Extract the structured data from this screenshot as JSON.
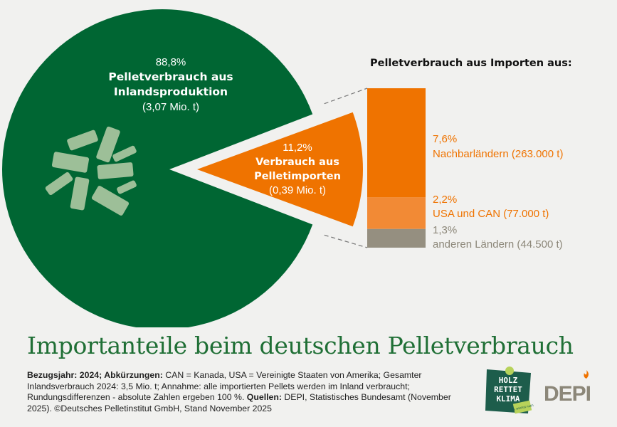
{
  "chart_data": {
    "type": "pie",
    "title": "Importanteile beim deutschen Pelletverbrauch",
    "slices": [
      {
        "percent_label": "88,8%",
        "value": 88.8,
        "label_lines": [
          "Pelletverbrauch aus",
          "Inlandsproduktion"
        ],
        "amount": "(3,07 Mio. t)",
        "color": "#006633"
      },
      {
        "percent_label": "11,2%",
        "value": 11.2,
        "label_lines": [
          "Verbrauch aus",
          "Pelletimporten"
        ],
        "amount": "(0,39 Mio. t)",
        "color": "#ef7300",
        "exploded": true
      }
    ],
    "breakdown": {
      "title": "Pelletverbrauch aus Importen aus:",
      "type": "stacked-bar",
      "segments": [
        {
          "percent_label": "7,6%",
          "value": 7.6,
          "label": "Nachbarländern (263.000 t)",
          "color": "#ef7300",
          "text_color": "#ef7300"
        },
        {
          "percent_label": "2,2%",
          "value": 2.2,
          "label": "USA und CAN (77.000 t)",
          "color": "#f28a35",
          "text_color": "#ef7300"
        },
        {
          "percent_label": "1,3%",
          "value": 1.3,
          "label": "anderen Ländern (44.500 t)",
          "color": "#958f80",
          "text_color": "#8c8779"
        }
      ]
    }
  },
  "footer": {
    "label1": "Bezugsjahr: 2024; Abkürzungen:",
    "text1": " CAN = Kanada, USA = Vereinigte Staaten von Amerika; Gesamter Inlandsverbrauch 2024: 3,5 Mio. t; Annahme: alle importierten Pellets werden im Inland verbraucht; Rundungsdifferenzen - absolute Zahlen ergeben 100 %. ",
    "label2": "Quellen:",
    "text2": " DEPI, Statistisches Bundesamt (November 2025).  ©Deutsches Pelletinstitut GmbH, Stand November 2025"
  },
  "logos": {
    "holz": [
      "HOLZ",
      "RETTET",
      "KLIMA"
    ],
    "holz_tag": "Es wächst nach",
    "depi": "DEPI"
  },
  "colors": {
    "green": "#006633",
    "orange": "#ef7300",
    "title_green": "#1f6f35",
    "pellet": "#9dbf98"
  }
}
